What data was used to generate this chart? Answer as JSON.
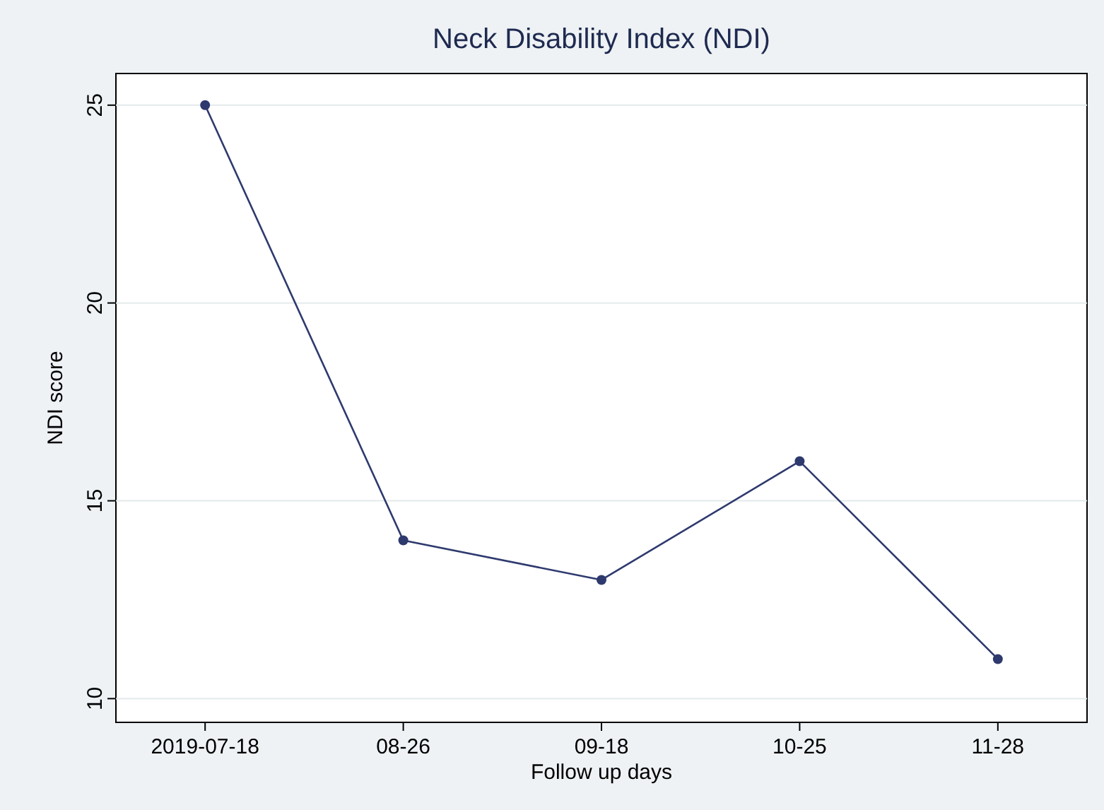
{
  "chart_data": {
    "type": "line",
    "title": "Neck Disability Index (NDI)",
    "xlabel": "Follow up days",
    "ylabel": "NDI score",
    "categories": [
      "2019-07-18",
      "08-26",
      "09-18",
      "10-25",
      "11-28"
    ],
    "series": [
      {
        "color": "#2e3a6e",
        "values": [
          25,
          14,
          13,
          16,
          11
        ]
      }
    ],
    "ylim": [
      9.4,
      25.8
    ],
    "yticks": [
      10,
      15,
      20,
      25
    ],
    "grid": "y",
    "marker": "circle",
    "line_style": "solid"
  }
}
